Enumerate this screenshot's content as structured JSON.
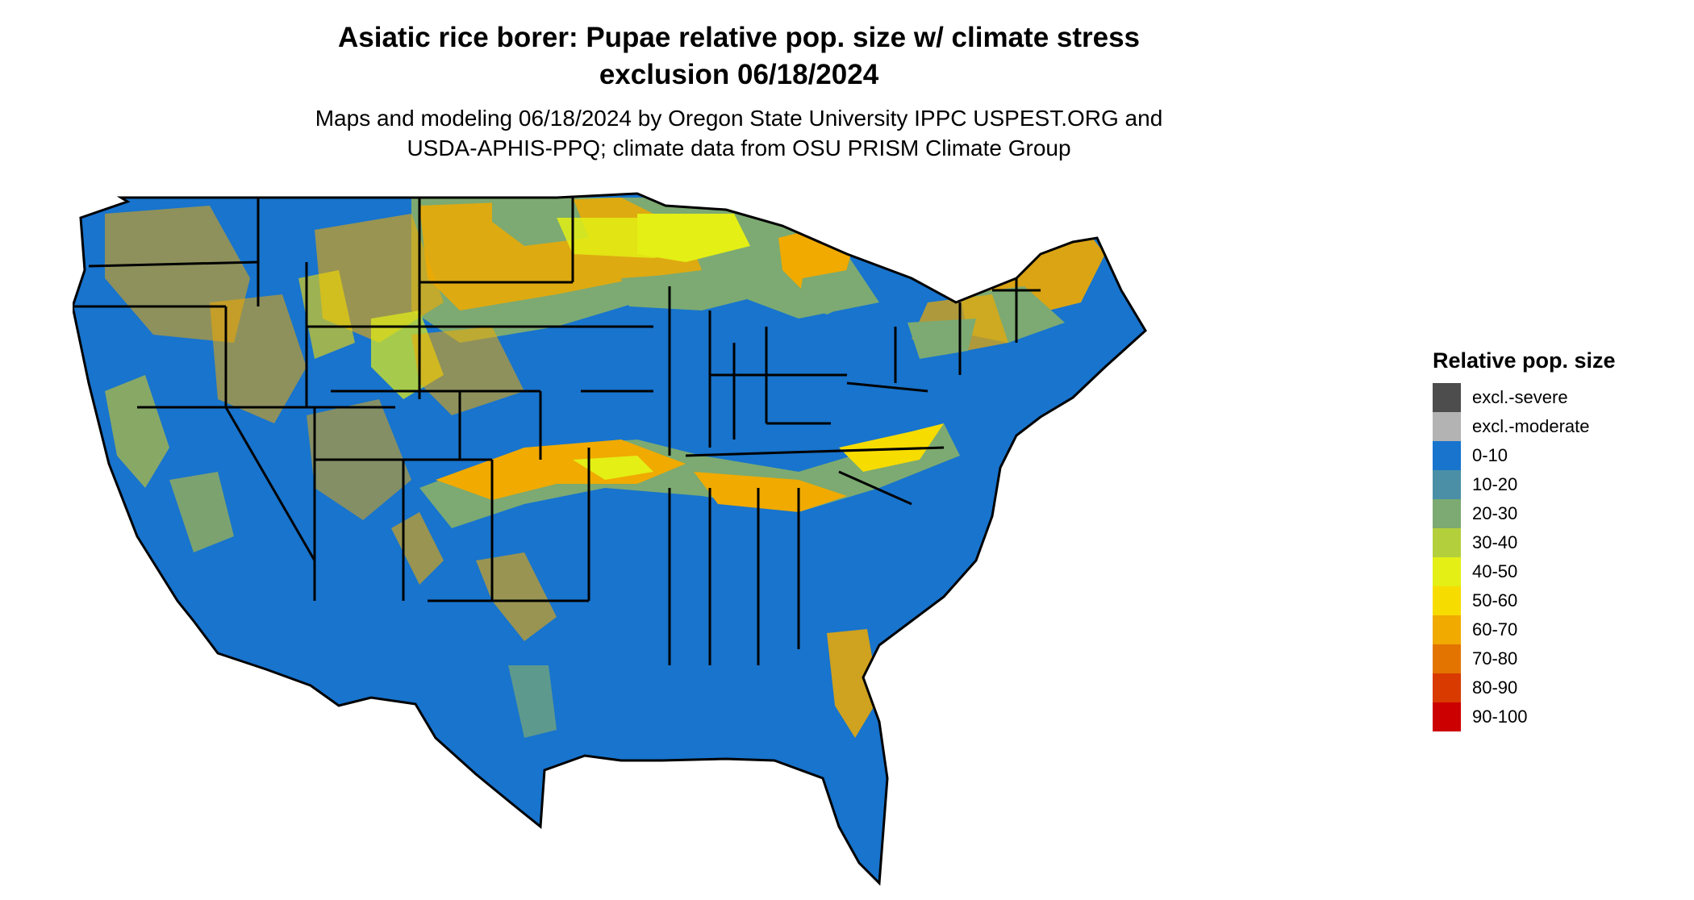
{
  "header": {
    "title_line1": "Asiatic rice borer: Pupae relative pop. size w/ climate stress",
    "title_line2": "exclusion 06/18/2024",
    "subtitle_line1": "Maps and modeling 06/18/2024 by Oregon State University IPPC USPEST.ORG and",
    "subtitle_line2": "USDA-APHIS-PPQ; climate data from OSU PRISM Climate Group"
  },
  "legend": {
    "title": "Relative pop. size",
    "items": [
      {
        "label": "excl.-severe",
        "color": "#4d4d4d"
      },
      {
        "label": "excl.-moderate",
        "color": "#b3b3b3"
      },
      {
        "label": "0-10",
        "color": "#1874cd"
      },
      {
        "label": "10-20",
        "color": "#4a8fa5"
      },
      {
        "label": "20-30",
        "color": "#7caa72"
      },
      {
        "label": "30-40",
        "color": "#b3cf3c"
      },
      {
        "label": "40-50",
        "color": "#e3ef15"
      },
      {
        "label": "50-60",
        "color": "#f7dc00"
      },
      {
        "label": "60-70",
        "color": "#f0aa00"
      },
      {
        "label": "70-80",
        "color": "#e37400"
      },
      {
        "label": "80-90",
        "color": "#d93a00"
      },
      {
        "label": "90-100",
        "color": "#cc0000"
      }
    ]
  },
  "map": {
    "region": "conterminous-us",
    "dominant_class": "0-10",
    "border_color": "#000000"
  }
}
